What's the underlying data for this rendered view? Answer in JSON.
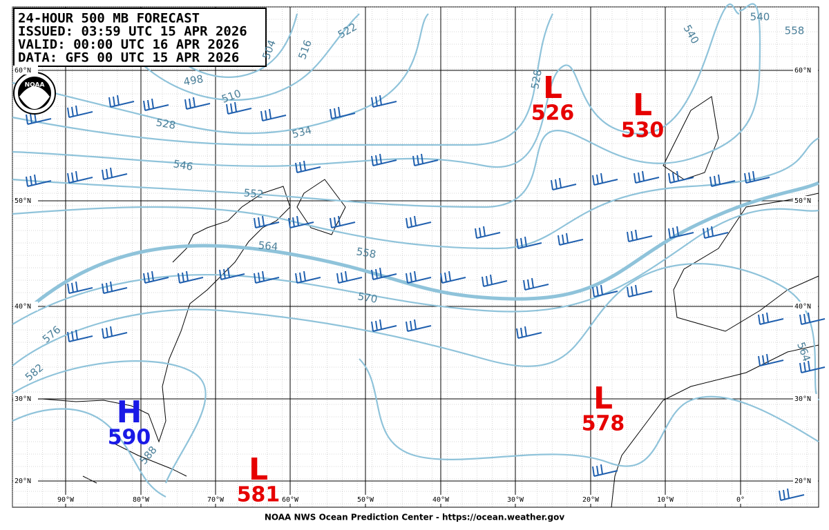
{
  "header": {
    "title": "24-HOUR 500 MB FORECAST",
    "issued": "ISSUED: 03:59 UTC 15 APR 2026",
    "valid": "VALID:  00:00 UTC 16 APR 2026",
    "data": "DATA:  GFS 00 UTC 15 APR 2026"
  },
  "logo": "NOAA",
  "centers": [
    {
      "symbol": "L",
      "value": 526
    },
    {
      "symbol": "L",
      "value": 530
    },
    {
      "symbol": "H",
      "value": 590
    },
    {
      "symbol": "L",
      "value": 581
    },
    {
      "symbol": "L",
      "value": 578
    }
  ],
  "contour_labels": [
    498,
    504,
    510,
    516,
    522,
    528,
    534,
    540,
    546,
    552,
    558,
    564,
    570,
    576,
    582,
    588,
    528,
    540,
    558,
    564
  ],
  "latitudes": [
    "60°N",
    "50°N",
    "40°N",
    "30°N",
    "20°N"
  ],
  "longitudes": [
    "90°W",
    "80°W",
    "70°W",
    "60°W",
    "50°W",
    "40°W",
    "30°W",
    "20°W",
    "10°W",
    "0°"
  ],
  "footer": "NOAA NWS Ocean Prediction Center - https://ocean.weather.gov"
}
